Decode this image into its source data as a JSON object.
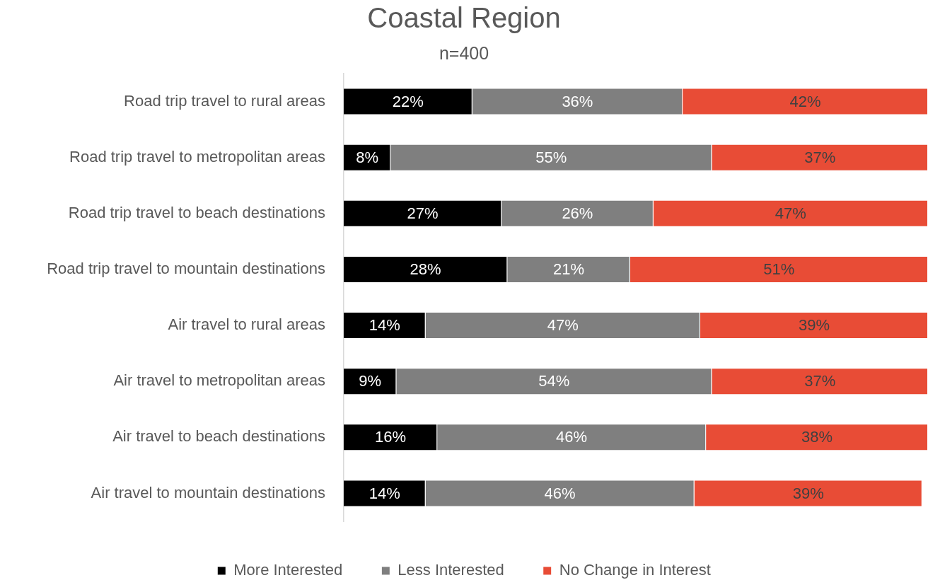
{
  "chart_data": {
    "type": "bar",
    "orientation": "horizontal",
    "stacked": true,
    "title": "Coastal Region",
    "subtitle": "n=400",
    "categories": [
      "Road trip travel to rural areas",
      "Road trip travel to metropolitan areas",
      "Road trip travel to beach destinations",
      "Road trip travel to mountain destinations",
      "Air travel to rural areas",
      "Air travel to metropolitan areas",
      "Air travel to beach destinations",
      "Air travel to mountain destinations"
    ],
    "series": [
      {
        "name": "More Interested",
        "color": "#000000",
        "values": [
          22,
          8,
          27,
          28,
          14,
          9,
          16,
          14
        ],
        "value_labels": [
          "22%",
          "8%",
          "27%",
          "28%",
          "14%",
          "9%",
          "16%",
          "14%"
        ]
      },
      {
        "name": "Less Interested",
        "color": "#7f7f7f",
        "values": [
          36,
          55,
          26,
          21,
          47,
          54,
          46,
          46
        ],
        "value_labels": [
          "36%",
          "55%",
          "26%",
          "21%",
          "47%",
          "54%",
          "46%",
          "46%"
        ]
      },
      {
        "name": "No Change in Interest",
        "color": "#e84c36",
        "values": [
          42,
          37,
          47,
          51,
          39,
          37,
          38,
          39
        ],
        "value_labels": [
          "42%",
          "37%",
          "47%",
          "51%",
          "39%",
          "37%",
          "38%",
          "39%"
        ]
      }
    ],
    "xlim": [
      0,
      100
    ],
    "legend": "bottom",
    "tick_labels": "y"
  }
}
